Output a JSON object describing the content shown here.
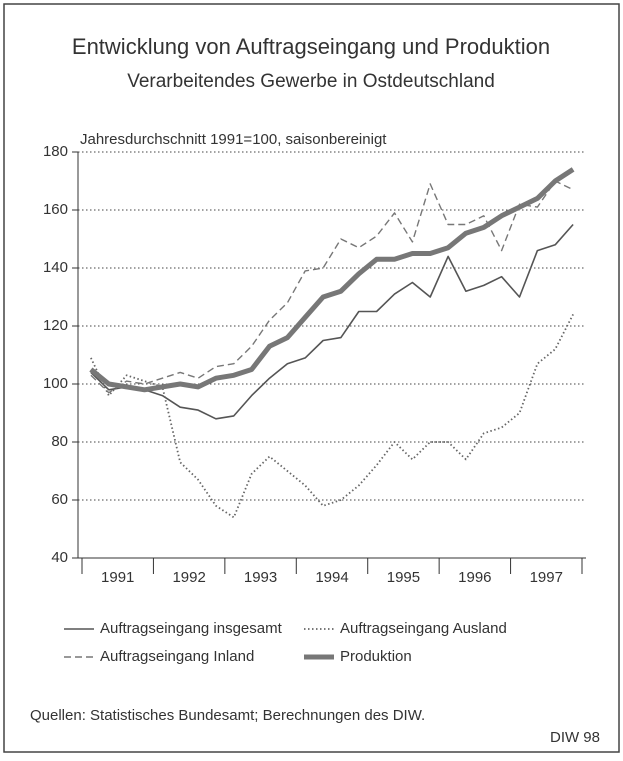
{
  "chart_data": {
    "type": "line",
    "title": "Entwicklung von Auftragseingang und Produktion",
    "subtitle": "Verarbeitendes Gewerbe in Ostdeutschland",
    "y_label": "Jahresdurchschnitt 1991=100, saisonbereinigt",
    "categories": [
      null,
      "1991",
      null,
      null,
      null,
      "1992",
      null,
      null,
      null,
      "1993",
      null,
      null,
      null,
      "1994",
      null,
      null,
      null,
      "1995",
      null,
      null,
      null,
      "1996",
      null,
      null,
      null,
      "1997",
      null,
      null
    ],
    "series": [
      {
        "name": "Auftragseingang insgesamt",
        "color": "#555555",
        "style": "solid",
        "values": [
          104,
          98,
          99,
          98,
          96,
          92,
          91,
          88,
          89,
          96,
          102,
          107,
          109,
          115,
          116,
          125,
          125,
          131,
          135,
          130,
          144,
          132,
          134,
          137,
          130,
          146,
          148,
          155
        ]
      },
      {
        "name": "Auftragseingang Ausland",
        "color": "#666666",
        "style": "dotted",
        "values": [
          109,
          96,
          103,
          101,
          99,
          73,
          67,
          58,
          54,
          69,
          75,
          70,
          65,
          58,
          60,
          65,
          72,
          80,
          74,
          80,
          80,
          74,
          83,
          85,
          90,
          107,
          112,
          124
        ]
      },
      {
        "name": "Auftragseingang Inland",
        "color": "#777777",
        "style": "dashed",
        "values": [
          103,
          97,
          101,
          100,
          102,
          104,
          102,
          106,
          107,
          113,
          122,
          128,
          139,
          140,
          150,
          147,
          151,
          159,
          149,
          169,
          155,
          155,
          158,
          146,
          162,
          161,
          170,
          167
        ]
      },
      {
        "name": "Produktion",
        "color": "#777777",
        "style": "thick",
        "values": [
          105,
          100,
          99,
          98,
          99,
          100,
          99,
          102,
          103,
          105,
          113,
          116,
          123,
          130,
          132,
          138,
          143,
          143,
          145,
          145,
          147,
          152,
          154,
          158,
          161,
          164,
          170,
          174
        ]
      }
    ],
    "ylim": [
      40,
      180
    ],
    "yticks": [
      40,
      60,
      80,
      100,
      120,
      140,
      160,
      180
    ],
    "grid": true,
    "source": "Quellen: Statistisches Bundesamt; Berechnungen des DIW.",
    "credit": "DIW 98"
  }
}
